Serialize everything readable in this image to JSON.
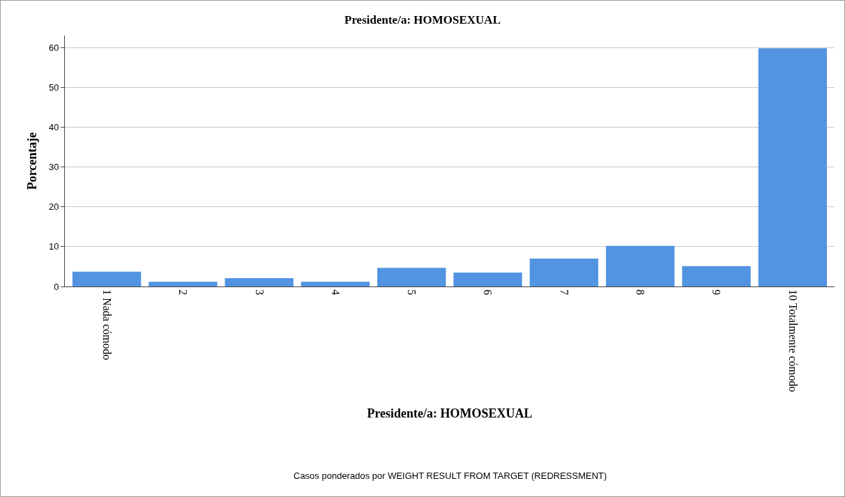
{
  "chart_data": {
    "type": "bar",
    "title": "Presidente/a: HOMOSEXUAL",
    "xlabel": "Presidente/a: HOMOSEXUAL",
    "ylabel": "Porcentaje",
    "categories": [
      "1 Nada cómodo",
      "2",
      "3",
      "4",
      "5",
      "6",
      "7",
      "8",
      "9",
      "10 Totalmente cómodo"
    ],
    "values": [
      3.7,
      1.2,
      2.1,
      1.2,
      4.7,
      3.5,
      7.0,
      10.2,
      5.1,
      59.8
    ],
    "color": "#5294e2",
    "ylim": [
      0,
      63
    ],
    "yticks": [
      0,
      10,
      20,
      30,
      40,
      50,
      60
    ],
    "grid": "y",
    "annotations": [
      "Casos ponderados por WEIGHT RESULT FROM TARGET (REDRESSMENT)"
    ]
  }
}
